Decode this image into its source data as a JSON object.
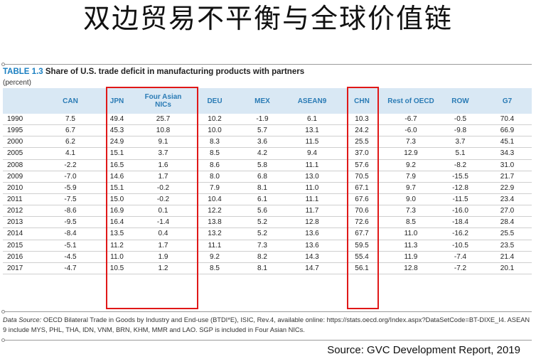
{
  "slide_title": "双边贸易不平衡与全球价值链",
  "table_caption": {
    "tag": "TABLE 1.3",
    "text": "Share of U.S. trade deficit in manufacturing products with partners"
  },
  "unit_note": "(percent)",
  "data_source": {
    "label": "Data Source:",
    "text": "OECD Bilateral Trade in Goods by Industry and End-use (BTDI*E), ISIC, Rev.4, available online: https://stats.oecd.org/Index.aspx?DataSetCode=BT-DIXE_I4. ASEAN 9 include MYS, PHL, THA, IDN, VNM, BRN, KHM, MMR and LAO. SGP is included in Four Asian NICs."
  },
  "source_credit": "Source: GVC Development Report, 2019",
  "highlighted_columns": [
    "JPN",
    "Four Asian NICs",
    "CHN"
  ],
  "chart_data": {
    "type": "table",
    "title": "Share of U.S. trade deficit in manufacturing products with partners",
    "unit": "(percent)",
    "columns": [
      "",
      "CAN",
      "JPN",
      "Four Asian NICs",
      "DEU",
      "MEX",
      "ASEAN9",
      "CHN",
      "Rest of OECD",
      "ROW",
      "G7"
    ],
    "rows": [
      [
        "1990",
        "7.5",
        "49.4",
        "25.7",
        "10.2",
        "-1.9",
        "6.1",
        "10.3",
        "-6.7",
        "-0.5",
        "70.4"
      ],
      [
        "1995",
        "6.7",
        "45.3",
        "10.8",
        "10.0",
        "5.7",
        "13.1",
        "24.2",
        "-6.0",
        "-9.8",
        "66.9"
      ],
      [
        "2000",
        "6.2",
        "24.9",
        "9.1",
        "8.3",
        "3.6",
        "11.5",
        "25.5",
        "7.3",
        "3.7",
        "45.1"
      ],
      [
        "2005",
        "4.1",
        "15.1",
        "3.7",
        "8.5",
        "4.2",
        "9.4",
        "37.0",
        "12.9",
        "5.1",
        "34.3"
      ],
      [
        "2008",
        "-2.2",
        "16.5",
        "1.6",
        "8.6",
        "5.8",
        "11.1",
        "57.6",
        "9.2",
        "-8.2",
        "31.0"
      ],
      [
        "2009",
        "-7.0",
        "14.6",
        "1.7",
        "8.0",
        "6.8",
        "13.0",
        "70.5",
        "7.9",
        "-15.5",
        "21.7"
      ],
      [
        "2010",
        "-5.9",
        "15.1",
        "-0.2",
        "7.9",
        "8.1",
        "11.0",
        "67.1",
        "9.7",
        "-12.8",
        "22.9"
      ],
      [
        "2011",
        "-7.5",
        "15.0",
        "-0.2",
        "10.4",
        "6.1",
        "11.1",
        "67.6",
        "9.0",
        "-11.5",
        "23.4"
      ],
      [
        "2012",
        "-8.6",
        "16.9",
        "0.1",
        "12.2",
        "5.6",
        "11.7",
        "70.6",
        "7.3",
        "-16.0",
        "27.0"
      ],
      [
        "2013",
        "-9.5",
        "16.4",
        "-1.4",
        "13.8",
        "5.2",
        "12.8",
        "72.6",
        "8.5",
        "-18.4",
        "28.4"
      ],
      [
        "2014",
        "-8.4",
        "13.5",
        "0.4",
        "13.2",
        "5.2",
        "13.6",
        "67.7",
        "11.0",
        "-16.2",
        "25.5"
      ],
      [
        "2015",
        "-5.1",
        "11.2",
        "1.7",
        "11.1",
        "7.3",
        "13.6",
        "59.5",
        "11.3",
        "-10.5",
        "23.5"
      ],
      [
        "2016",
        "-4.5",
        "11.0",
        "1.9",
        "9.2",
        "8.2",
        "14.3",
        "55.4",
        "11.9",
        "-7.4",
        "21.4"
      ],
      [
        "2017",
        "-4.7",
        "10.5",
        "1.2",
        "8.5",
        "8.1",
        "14.7",
        "56.1",
        "12.8",
        "-7.2",
        "20.1"
      ]
    ]
  }
}
